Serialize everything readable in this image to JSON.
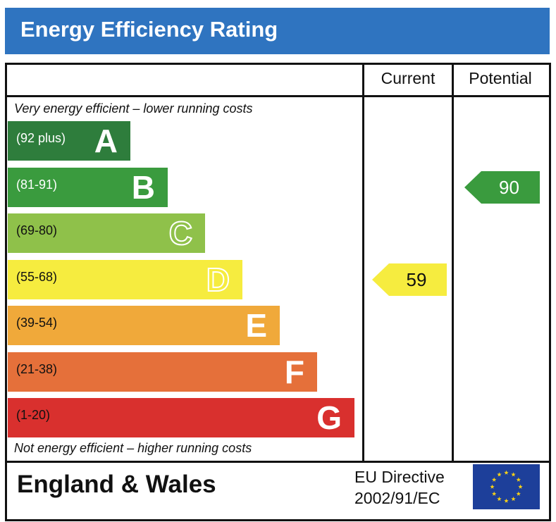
{
  "title": "Energy Efficiency Rating",
  "columns": {
    "current": "Current",
    "potential": "Potential"
  },
  "captions": {
    "top": "Very energy efficient – lower running costs",
    "bottom": "Not energy efficient – higher running costs"
  },
  "footer": {
    "region": "England & Wales",
    "directive_line1": "EU Directive",
    "directive_line2": "2002/91/EC",
    "flag_icon": "eu-flag-icon"
  },
  "chart_data": {
    "type": "bar",
    "title": "Energy Efficiency Rating",
    "categories": [
      "A",
      "B",
      "C",
      "D",
      "E",
      "F",
      "G"
    ],
    "bands": [
      {
        "letter": "A",
        "range": "(92 plus)",
        "color": "#2e7d3c",
        "text_color": "#ffffff",
        "outlined": false
      },
      {
        "letter": "B",
        "range": "(81-91)",
        "color": "#3a9b3e",
        "text_color": "#ffffff",
        "outlined": false
      },
      {
        "letter": "C",
        "range": "(69-80)",
        "color": "#8fc14a",
        "text_color": "#111111",
        "outlined": true
      },
      {
        "letter": "D",
        "range": "(55-68)",
        "color": "#f6ec3f",
        "text_color": "#111111",
        "outlined": true
      },
      {
        "letter": "E",
        "range": "(39-54)",
        "color": "#f0a93a",
        "text_color": "#111111",
        "outlined": false
      },
      {
        "letter": "F",
        "range": "(21-38)",
        "color": "#e5703a",
        "text_color": "#111111",
        "outlined": false
      },
      {
        "letter": "G",
        "range": "(1-20)",
        "color": "#d9302e",
        "text_color": "#111111",
        "outlined": false
      }
    ],
    "current": {
      "value": 59,
      "band": "D",
      "color": "#f6ec3f"
    },
    "potential": {
      "value": 90,
      "band": "B",
      "color": "#3a9b3e"
    }
  }
}
